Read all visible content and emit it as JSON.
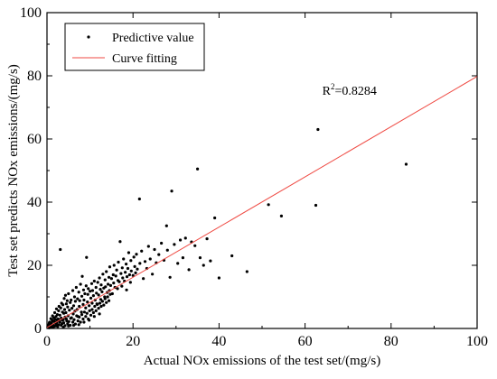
{
  "chart_data": {
    "type": "scatter",
    "title": "",
    "xlabel": "Actual NOx emissions of the test set/(mg/s)",
    "ylabel": "Test set predicts NOx emissions/(mg/s)",
    "xlim": [
      0,
      100
    ],
    "ylim": [
      0,
      100
    ],
    "x_ticks": [
      0,
      20,
      40,
      60,
      80,
      100
    ],
    "y_ticks": [
      0,
      20,
      40,
      60,
      80,
      100
    ],
    "grid": false,
    "legend_position": "top-left",
    "annotation": {
      "prefix": "R",
      "superscript": "2",
      "suffix": "=0.8284",
      "x": 64,
      "y": 74
    },
    "series": [
      {
        "name": "Predictive value",
        "kind": "scatter",
        "color": "#000000",
        "points": [
          [
            0.2,
            0.5
          ],
          [
            0.4,
            1.1
          ],
          [
            0.5,
            0.2
          ],
          [
            0.6,
            2.0
          ],
          [
            0.7,
            1.4
          ],
          [
            0.8,
            0.6
          ],
          [
            0.9,
            3.1
          ],
          [
            1.0,
            1.8
          ],
          [
            1.1,
            0.9
          ],
          [
            1.2,
            2.6
          ],
          [
            1.3,
            4.0
          ],
          [
            1.4,
            1.2
          ],
          [
            1.5,
            2.2
          ],
          [
            1.6,
            3.4
          ],
          [
            1.7,
            0.7
          ],
          [
            1.8,
            5.0
          ],
          [
            1.9,
            2.9
          ],
          [
            2.0,
            1.6
          ],
          [
            2.1,
            3.8
          ],
          [
            2.2,
            6.2
          ],
          [
            2.3,
            2.0
          ],
          [
            2.4,
            4.4
          ],
          [
            2.5,
            1.1
          ],
          [
            2.6,
            3.0
          ],
          [
            2.7,
            5.6
          ],
          [
            2.8,
            7.0
          ],
          [
            2.9,
            2.5
          ],
          [
            3.0,
            4.2
          ],
          [
            3.1,
            25.0
          ],
          [
            3.2,
            6.5
          ],
          [
            3.3,
            3.3
          ],
          [
            3.4,
            8.0
          ],
          [
            3.5,
            1.5
          ],
          [
            3.6,
            5.2
          ],
          [
            3.7,
            7.5
          ],
          [
            3.8,
            2.8
          ],
          [
            3.9,
            4.8
          ],
          [
            4.0,
            9.5
          ],
          [
            4.1,
            6.0
          ],
          [
            4.2,
            3.6
          ],
          [
            4.3,
            10.5
          ],
          [
            4.4,
            5.0
          ],
          [
            4.5,
            7.8
          ],
          [
            4.6,
            2.4
          ],
          [
            4.7,
            8.8
          ],
          [
            4.8,
            6.8
          ],
          [
            4.9,
            4.0
          ],
          [
            5.0,
            11.0
          ],
          [
            5.2,
            5.8
          ],
          [
            5.4,
            8.2
          ],
          [
            5.5,
            3.2
          ],
          [
            5.6,
            9.0
          ],
          [
            5.8,
            6.4
          ],
          [
            6.0,
            12.0
          ],
          [
            6.1,
            4.6
          ],
          [
            6.2,
            7.2
          ],
          [
            6.4,
            10.0
          ],
          [
            6.5,
            5.5
          ],
          [
            6.6,
            8.6
          ],
          [
            6.8,
            13.0
          ],
          [
            7.0,
            6.0
          ],
          [
            7.1,
            9.4
          ],
          [
            7.2,
            3.8
          ],
          [
            7.4,
            11.5
          ],
          [
            7.5,
            7.0
          ],
          [
            7.6,
            8.8
          ],
          [
            7.8,
            14.0
          ],
          [
            8.0,
            5.2
          ],
          [
            8.1,
            10.2
          ],
          [
            8.2,
            16.5
          ],
          [
            8.4,
            7.6
          ],
          [
            8.5,
            12.2
          ],
          [
            8.6,
            9.0
          ],
          [
            8.8,
            11.0
          ],
          [
            9.0,
            6.5
          ],
          [
            9.1,
            13.5
          ],
          [
            9.2,
            22.5
          ],
          [
            9.4,
            8.4
          ],
          [
            9.5,
            10.8
          ],
          [
            9.6,
            12.6
          ],
          [
            9.8,
            7.2
          ],
          [
            10.0,
            11.8
          ],
          [
            10.2,
            9.6
          ],
          [
            10.4,
            14.2
          ],
          [
            10.5,
            8.0
          ],
          [
            10.6,
            12.0
          ],
          [
            10.8,
            10.4
          ],
          [
            11.0,
            15.0
          ],
          [
            11.2,
            9.0
          ],
          [
            11.4,
            13.0
          ],
          [
            11.5,
            11.2
          ],
          [
            11.6,
            7.8
          ],
          [
            11.8,
            14.6
          ],
          [
            12.0,
            10.6
          ],
          [
            12.2,
            16.0
          ],
          [
            12.4,
            12.4
          ],
          [
            12.5,
            9.2
          ],
          [
            12.6,
            13.8
          ],
          [
            12.8,
            11.6
          ],
          [
            13.0,
            17.2
          ],
          [
            13.2,
            12.8
          ],
          [
            13.4,
            10.0
          ],
          [
            13.5,
            15.4
          ],
          [
            13.6,
            13.2
          ],
          [
            13.8,
            18.0
          ],
          [
            14.0,
            11.4
          ],
          [
            14.2,
            14.0
          ],
          [
            14.4,
            16.2
          ],
          [
            14.5,
            12.0
          ],
          [
            14.6,
            19.5
          ],
          [
            14.8,
            13.6
          ],
          [
            15.0,
            15.8
          ],
          [
            15.2,
            11.0
          ],
          [
            15.4,
            17.0
          ],
          [
            15.5,
            14.4
          ],
          [
            15.6,
            20.0
          ],
          [
            15.8,
            13.0
          ],
          [
            16.0,
            16.6
          ],
          [
            16.2,
            18.5
          ],
          [
            16.4,
            12.6
          ],
          [
            16.5,
            15.2
          ],
          [
            16.6,
            21.0
          ],
          [
            16.8,
            14.8
          ],
          [
            17.0,
            27.5
          ],
          [
            17.2,
            17.4
          ],
          [
            17.4,
            13.4
          ],
          [
            17.5,
            19.2
          ],
          [
            17.6,
            16.0
          ],
          [
            17.8,
            22.0
          ],
          [
            18.0,
            15.0
          ],
          [
            18.2,
            17.8
          ],
          [
            18.4,
            20.4
          ],
          [
            18.5,
            12.2
          ],
          [
            18.6,
            16.4
          ],
          [
            18.8,
            19.0
          ],
          [
            19.0,
            24.0
          ],
          [
            19.2,
            17.0
          ],
          [
            19.4,
            14.6
          ],
          [
            19.5,
            21.5
          ],
          [
            19.6,
            18.2
          ],
          [
            20.0,
            16.8
          ],
          [
            20.2,
            22.6
          ],
          [
            20.4,
            19.6
          ],
          [
            20.6,
            17.6
          ],
          [
            20.8,
            23.5
          ],
          [
            21.0,
            18.8
          ],
          [
            21.5,
            41.0
          ],
          [
            21.6,
            20.6
          ],
          [
            22.0,
            24.5
          ],
          [
            22.4,
            15.8
          ],
          [
            22.8,
            21.2
          ],
          [
            23.2,
            19.0
          ],
          [
            23.6,
            26.0
          ],
          [
            24.0,
            22.0
          ],
          [
            24.5,
            17.2
          ],
          [
            25.0,
            25.0
          ],
          [
            25.4,
            20.8
          ],
          [
            26.0,
            23.4
          ],
          [
            26.6,
            27.0
          ],
          [
            27.2,
            21.6
          ],
          [
            27.8,
            32.5
          ],
          [
            28.0,
            24.8
          ],
          [
            28.6,
            16.2
          ],
          [
            29.0,
            43.5
          ],
          [
            29.6,
            26.6
          ],
          [
            30.4,
            20.6
          ],
          [
            31.0,
            28.0
          ],
          [
            31.6,
            22.4
          ],
          [
            32.2,
            28.6
          ],
          [
            33.0,
            18.6
          ],
          [
            33.6,
            27.4
          ],
          [
            34.4,
            26.2
          ],
          [
            35.0,
            50.5
          ],
          [
            35.6,
            22.4
          ],
          [
            36.4,
            20.0
          ],
          [
            37.2,
            28.4
          ],
          [
            38.0,
            21.4
          ],
          [
            39.0,
            35.0
          ],
          [
            40.0,
            16.0
          ],
          [
            43.0,
            23.0
          ],
          [
            46.5,
            18.0
          ],
          [
            51.5,
            39.2
          ],
          [
            54.5,
            35.6
          ],
          [
            62.5,
            39.0
          ],
          [
            63.0,
            63.0
          ],
          [
            83.5,
            52.0
          ],
          [
            0.3,
            0.8
          ],
          [
            0.5,
            1.6
          ],
          [
            0.9,
            0.4
          ],
          [
            1.2,
            1.0
          ],
          [
            1.5,
            0.5
          ],
          [
            1.7,
            2.4
          ],
          [
            2.0,
            0.8
          ],
          [
            2.2,
            1.4
          ],
          [
            2.4,
            2.8
          ],
          [
            2.7,
            1.2
          ],
          [
            3.0,
            2.0
          ],
          [
            3.3,
            1.0
          ],
          [
            3.6,
            2.6
          ],
          [
            3.9,
            1.8
          ],
          [
            4.2,
            0.9
          ],
          [
            4.5,
            3.0
          ],
          [
            4.8,
            1.5
          ],
          [
            5.1,
            2.2
          ],
          [
            5.4,
            1.0
          ],
          [
            5.7,
            3.4
          ],
          [
            6.0,
            2.0
          ],
          [
            6.3,
            2.8
          ],
          [
            6.6,
            1.4
          ],
          [
            6.9,
            4.0
          ],
          [
            7.2,
            2.4
          ],
          [
            7.5,
            3.6
          ],
          [
            7.8,
            2.0
          ],
          [
            8.1,
            4.4
          ],
          [
            8.4,
            3.0
          ],
          [
            8.7,
            5.2
          ],
          [
            9.0,
            3.8
          ],
          [
            9.3,
            4.8
          ],
          [
            9.6,
            3.0
          ],
          [
            9.9,
            5.6
          ],
          [
            10.2,
            4.2
          ],
          [
            10.5,
            6.0
          ],
          [
            10.8,
            5.0
          ],
          [
            11.1,
            7.0
          ],
          [
            11.4,
            5.6
          ],
          [
            11.7,
            7.6
          ],
          [
            12.0,
            6.4
          ],
          [
            12.3,
            8.0
          ],
          [
            12.6,
            7.0
          ],
          [
            12.9,
            8.6
          ],
          [
            13.2,
            7.4
          ],
          [
            13.5,
            9.4
          ],
          [
            13.8,
            8.2
          ],
          [
            14.1,
            10.0
          ],
          [
            14.4,
            8.8
          ],
          [
            14.7,
            10.8
          ],
          [
            1.0,
            0.3
          ],
          [
            2.5,
            0.6
          ],
          [
            3.8,
            0.4
          ],
          [
            5.0,
            0.8
          ],
          [
            6.2,
            1.0
          ],
          [
            7.4,
            1.2
          ],
          [
            8.6,
            2.0
          ],
          [
            9.8,
            2.6
          ],
          [
            11.0,
            3.8
          ],
          [
            12.2,
            4.6
          ]
        ]
      },
      {
        "name": "Curve fitting",
        "kind": "line",
        "color": "#ef4a43",
        "points": [
          [
            0,
            0.3
          ],
          [
            100,
            79.8
          ]
        ]
      }
    ]
  }
}
